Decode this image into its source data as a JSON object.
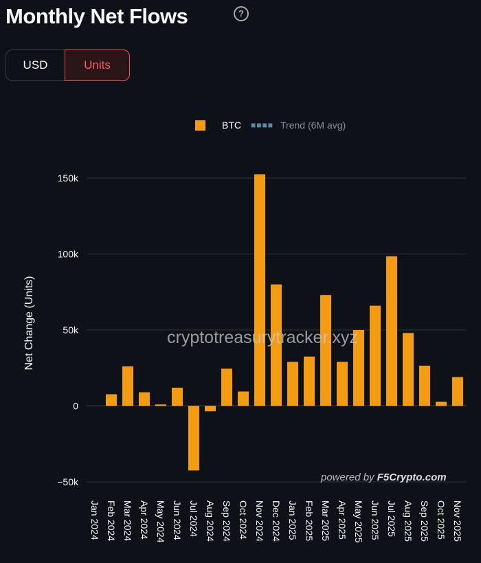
{
  "header": {
    "title": "Monthly Net Flows",
    "help_icon": "question-circle-icon"
  },
  "toggle": {
    "options": [
      "USD",
      "Units"
    ],
    "selected": "Units"
  },
  "colors": {
    "bar": "#f39c12",
    "trend": "#5b8aa6",
    "accent": "#ff5a5f",
    "background": "#0e1117"
  },
  "watermark": "cryptotreasurytracker.xyz",
  "powered": {
    "prefix": "powered by",
    "brand": "F5Crypto.com"
  },
  "chart_data": {
    "type": "bar",
    "ylabel": "Net Change (Units)",
    "ylim": [
      -50000,
      155000
    ],
    "yticks": [
      -50000,
      0,
      50000,
      100000,
      150000
    ],
    "ytick_labels": [
      "−50k",
      "0",
      "50k",
      "100k",
      "150k"
    ],
    "grid": true,
    "legend": {
      "placement": "top",
      "entries": [
        "BTC",
        "Trend (6M avg)"
      ]
    },
    "categories": [
      "Jan 2024",
      "Feb 2024",
      "Mar 2024",
      "Apr 2024",
      "May 2024",
      "Jun 2024",
      "Jul 2024",
      "Aug 2024",
      "Sep 2024",
      "Oct 2024",
      "Nov 2024",
      "Dec 2024",
      "Jan 2025",
      "Feb 2025",
      "Mar 2025",
      "Apr 2025",
      "May 2025",
      "Jun 2025",
      "Jul 2025",
      "Aug 2025",
      "Sep 2025",
      "Oct 2025",
      "Nov 2025"
    ],
    "series": [
      {
        "name": "BTC",
        "values": [
          0,
          7700,
          26000,
          9000,
          1000,
          12000,
          -42500,
          -3500,
          24500,
          9500,
          152500,
          80000,
          29000,
          32500,
          73000,
          29000,
          50000,
          66000,
          98500,
          48000,
          26500,
          2700,
          19000
        ]
      }
    ]
  }
}
